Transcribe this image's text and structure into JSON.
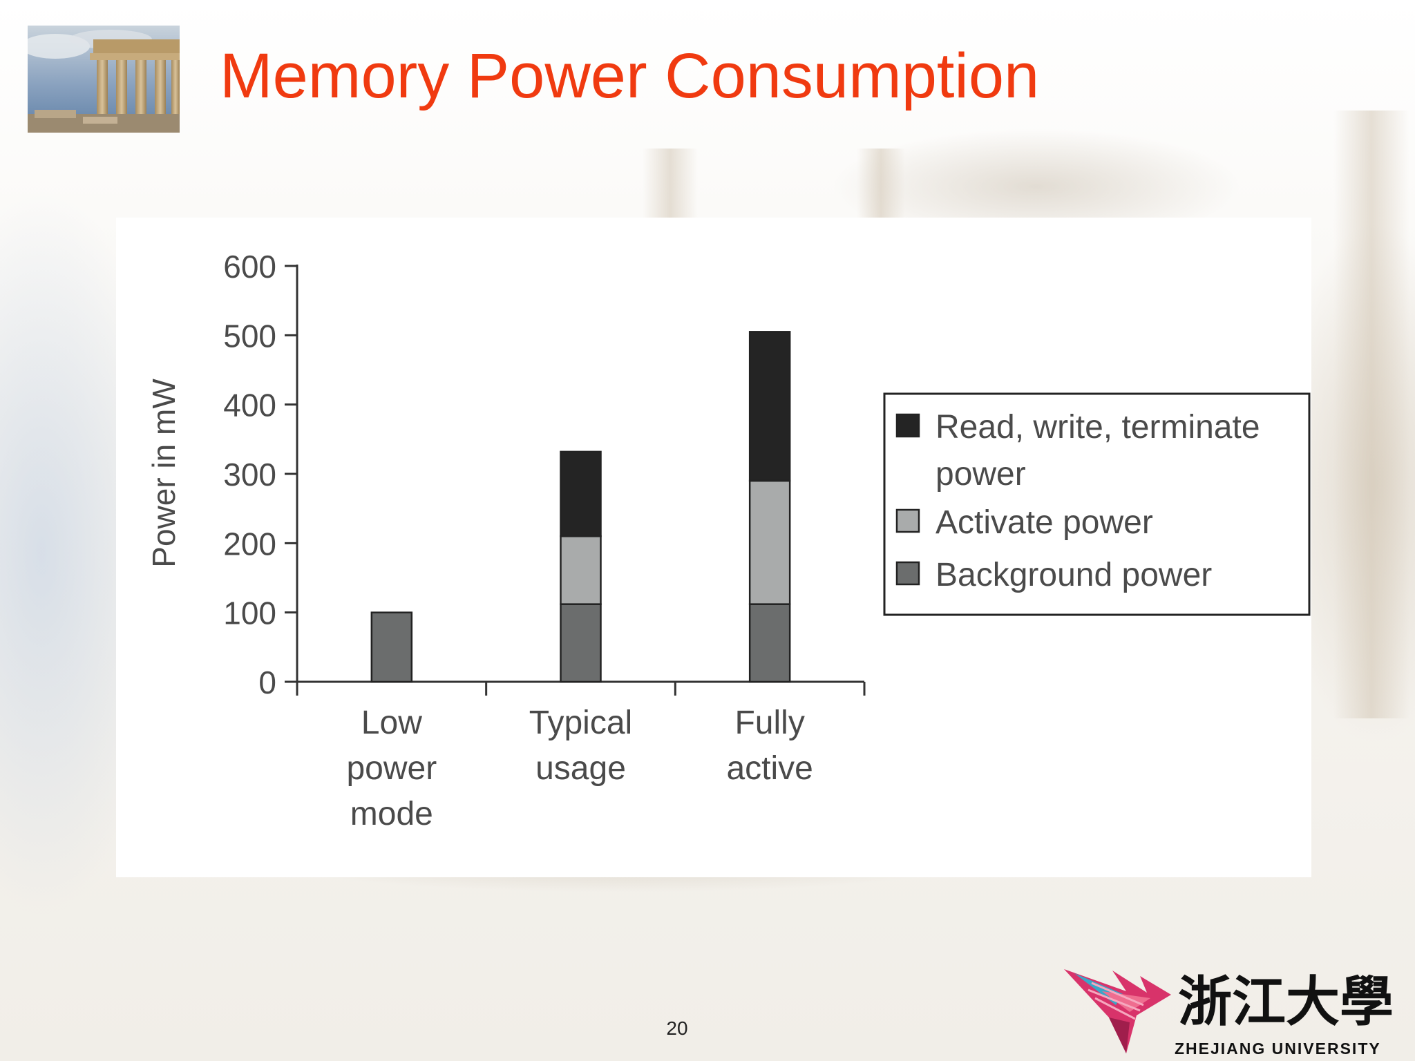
{
  "slide": {
    "title": "Memory Power Consumption",
    "page_number": "20",
    "logo_text": "ZHEJIANG UNIVERSITY",
    "logo_chinese": "浙江大學",
    "title_color": "#f03a10"
  },
  "chart_data": {
    "type": "bar",
    "stacked": true,
    "categories": [
      "Low power mode",
      "Typical usage",
      "Fully active"
    ],
    "category_lines": [
      [
        "Low",
        "power",
        "mode"
      ],
      [
        "Typical",
        "usage"
      ],
      [
        "Fully",
        "active"
      ]
    ],
    "series": [
      {
        "name": "Background power",
        "values": [
          100,
          112,
          112
        ],
        "color": "#6b6d6d"
      },
      {
        "name": "Activate power",
        "values": [
          0,
          98,
          178
        ],
        "color": "#a9abab"
      },
      {
        "name": "Read, write, terminate power",
        "values": [
          0,
          122,
          215
        ],
        "color": "#242424"
      }
    ],
    "legend_order": [
      "Read, write, terminate power",
      "Activate power",
      "Background power"
    ],
    "legend_lines": [
      [
        "Read, write, terminate",
        "power"
      ],
      [
        "Activate power"
      ],
      [
        "Background power"
      ]
    ],
    "legend_position": "right",
    "ylabel": "Power in mW",
    "xlabel": "",
    "ylim": [
      0,
      600
    ],
    "yticks": [
      0,
      100,
      200,
      300,
      400,
      500,
      600
    ],
    "grid": false
  }
}
